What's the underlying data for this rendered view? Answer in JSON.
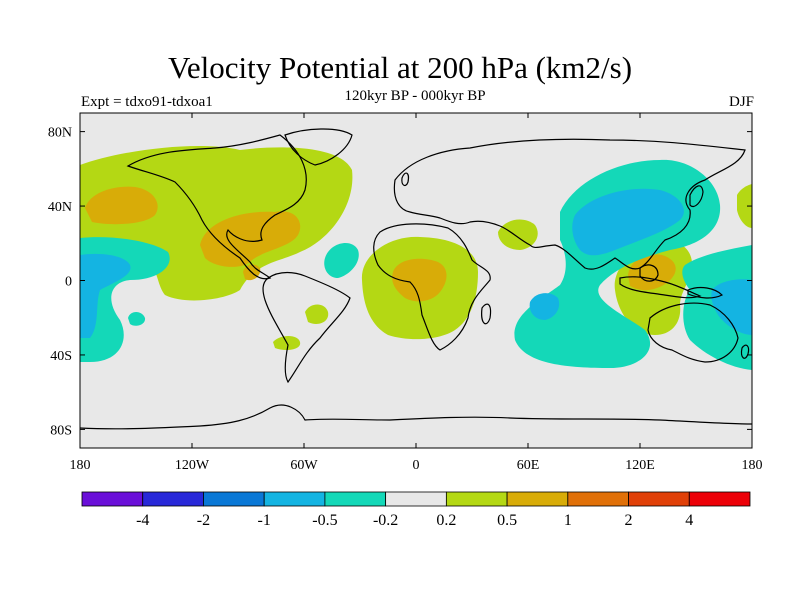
{
  "title": "Velocity Potential at 200 hPa (km2/s)",
  "subtitle": "120kyr BP - 000kyr BP",
  "left_label": "Expt = tdxo91-tdxoa1",
  "right_label": "DJF",
  "lat_ticks": [
    {
      "label": "80N",
      "lat": 80
    },
    {
      "label": "40N",
      "lat": 40
    },
    {
      "label": "0",
      "lat": 0
    },
    {
      "label": "40S",
      "lat": -40
    },
    {
      "label": "80S",
      "lat": -80
    }
  ],
  "lon_ticks": [
    {
      "label": "180",
      "lon": -180
    },
    {
      "label": "120W",
      "lon": -120
    },
    {
      "label": "60W",
      "lon": -60
    },
    {
      "label": "0",
      "lon": 0
    },
    {
      "label": "60E",
      "lon": 60
    },
    {
      "label": "120E",
      "lon": 120
    },
    {
      "label": "180",
      "lon": 180
    }
  ],
  "colorbar": {
    "colors": [
      "#6a0fd8",
      "#2828d8",
      "#0a78d6",
      "#14b4e2",
      "#14d8b8",
      "#e8e8e8",
      "#b4d814",
      "#d8ac08",
      "#e07008",
      "#e04008",
      "#ec0008"
    ],
    "labels": [
      "-4",
      "-2",
      "-1",
      "-0.5",
      "-0.2",
      "0.2",
      "0.5",
      "1",
      "2",
      "4"
    ]
  },
  "colors": {
    "background": "#e8e8e8",
    "yellow_green": "#b4d814",
    "gold": "#d8ac08",
    "aqua": "#14d8b8",
    "cyan": "#14b4e2"
  }
}
